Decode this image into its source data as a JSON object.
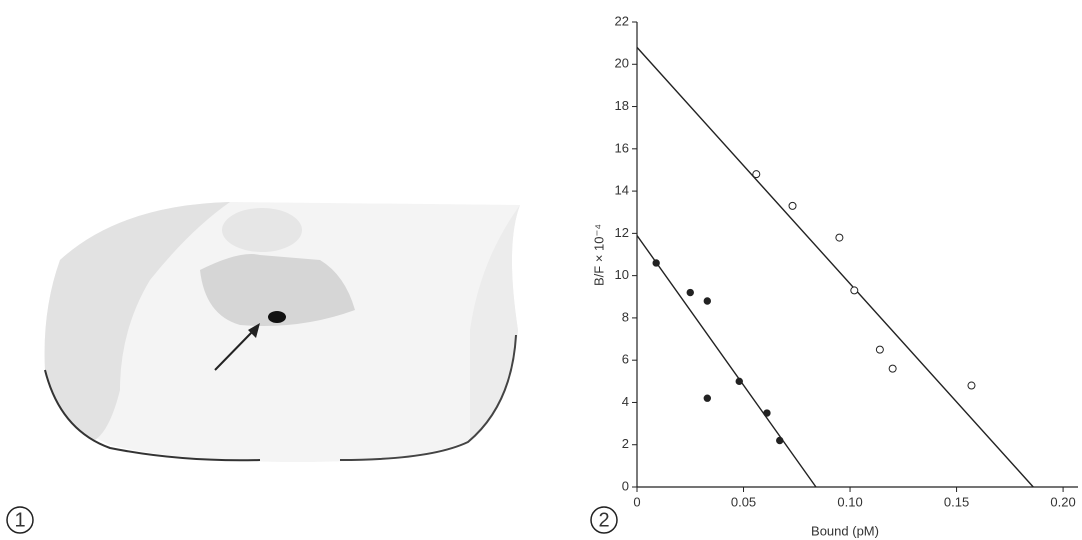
{
  "panel_labels": [
    "1",
    "2"
  ],
  "chart_data": {
    "type": "scatter",
    "xlabel": "Bound (pM)",
    "ylabel": "B/F × 10⁻⁴",
    "xlim": [
      0,
      0.207
    ],
    "ylim": [
      0,
      22
    ],
    "xticks": [
      0,
      0.05,
      {
        "value": 0.1,
        "label": "0.10"
      },
      0.15,
      {
        "value": 0.2,
        "label": "0.20"
      }
    ],
    "yticks": [
      0,
      2,
      4,
      6,
      8,
      10,
      12,
      14,
      16,
      18,
      20,
      22
    ],
    "series": [
      {
        "marker": "open",
        "color": "#222222",
        "x": [
          0.056,
          0.073,
          0.095,
          0.102,
          0.114,
          0.12,
          0.157
        ],
        "values": [
          14.8,
          13.3,
          11.8,
          9.3,
          6.5,
          5.6,
          4.8
        ]
      },
      {
        "marker": "filled",
        "color": "#222222",
        "x": [
          0.009,
          0.025,
          0.033,
          0.033,
          0.048,
          0.061,
          0.067
        ],
        "values": [
          10.6,
          9.2,
          8.8,
          4.2,
          5.0,
          3.5,
          2.2
        ]
      }
    ],
    "fit_lines": [
      {
        "x": [
          0,
          0.186
        ],
        "values": [
          20.8,
          0
        ]
      },
      {
        "x": [
          0,
          0.084
        ],
        "values": [
          11.9,
          0
        ]
      }
    ]
  }
}
